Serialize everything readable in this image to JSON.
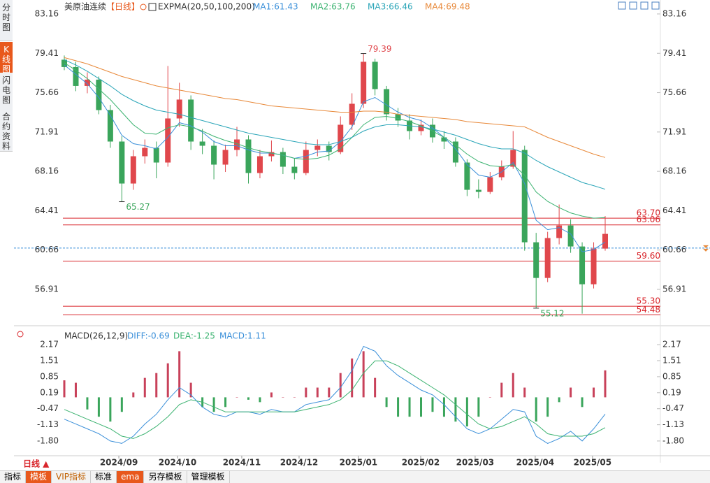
{
  "sidebar": [
    "分时图",
    "K线图",
    "闪电图",
    "合约资料"
  ],
  "header": {
    "symbol": "美原油连续",
    "period": "【日线】",
    "indicator": "EXPMA(20,50,100,200)"
  },
  "chart_data": {
    "type": "candlestick",
    "candles": [
      [
        78.8,
        79.2,
        77.8,
        78.1
      ],
      [
        78.1,
        78.6,
        75.8,
        76.3
      ],
      [
        76.3,
        77.6,
        75.6,
        76.9
      ],
      [
        76.9,
        77.2,
        73.6,
        74.0
      ],
      [
        74.0,
        74.5,
        70.4,
        71.0
      ],
      [
        71.0,
        71.5,
        65.27,
        67.0
      ],
      [
        67.0,
        70.2,
        66.4,
        69.6
      ],
      [
        69.6,
        71.2,
        68.9,
        70.4
      ],
      [
        70.4,
        71.0,
        67.5,
        69.0
      ],
      [
        69.0,
        78.2,
        68.6,
        73.2
      ],
      [
        73.2,
        76.6,
        72.4,
        75.0
      ],
      [
        75.0,
        75.4,
        70.2,
        71.0
      ],
      [
        71.0,
        72.2,
        69.8,
        70.6
      ],
      [
        70.6,
        71.1,
        67.4,
        68.8
      ],
      [
        68.8,
        70.7,
        68.1,
        70.2
      ],
      [
        70.2,
        72.4,
        69.6,
        71.2
      ],
      [
        71.2,
        71.6,
        67.0,
        68.0
      ],
      [
        68.0,
        70.2,
        67.5,
        69.6
      ],
      [
        69.6,
        71.1,
        69.1,
        70.0
      ],
      [
        70.0,
        70.4,
        67.9,
        68.6
      ],
      [
        68.6,
        69.4,
        67.4,
        68.0
      ],
      [
        68.0,
        71.0,
        67.8,
        70.2
      ],
      [
        70.2,
        71.2,
        69.6,
        70.6
      ],
      [
        70.6,
        71.0,
        69.2,
        70.0
      ],
      [
        70.0,
        73.4,
        69.8,
        72.6
      ],
      [
        72.6,
        75.6,
        72.1,
        74.6
      ],
      [
        74.6,
        79.39,
        74.2,
        78.6
      ],
      [
        78.6,
        78.9,
        75.4,
        76.0
      ],
      [
        76.0,
        76.3,
        73.0,
        73.6
      ],
      [
        73.6,
        74.2,
        72.4,
        73.0
      ],
      [
        73.0,
        73.6,
        71.2,
        72.0
      ],
      [
        72.0,
        73.1,
        71.6,
        72.6
      ],
      [
        72.6,
        73.2,
        70.9,
        71.4
      ],
      [
        71.4,
        72.0,
        70.3,
        71.0
      ],
      [
        71.0,
        71.4,
        68.6,
        69.0
      ],
      [
        69.0,
        69.3,
        65.8,
        66.4
      ],
      [
        66.4,
        67.4,
        65.6,
        66.2
      ],
      [
        66.2,
        68.1,
        66.0,
        67.6
      ],
      [
        67.6,
        69.2,
        67.3,
        68.6
      ],
      [
        68.6,
        72.0,
        68.4,
        70.2
      ],
      [
        70.2,
        70.6,
        60.6,
        61.4
      ],
      [
        61.4,
        62.3,
        55.12,
        58.0
      ],
      [
        58.0,
        62.4,
        57.6,
        61.8
      ],
      [
        61.8,
        65.0,
        61.2,
        63.0
      ],
      [
        63.0,
        63.6,
        60.4,
        61.0
      ],
      [
        61.0,
        61.4,
        54.6,
        57.4
      ],
      [
        57.4,
        61.4,
        57.0,
        60.8
      ],
      [
        60.8,
        63.9,
        60.6,
        62.2
      ]
    ],
    "up_color": "#e0474c",
    "down_color": "#3aa55b",
    "series": [
      {
        "name": "MA1:61.43",
        "color": "#3a8fd9",
        "values": [
          78.3,
          77.4,
          76.5,
          75.2,
          73.5,
          71.6,
          70.8,
          70.6,
          70.3,
          71.4,
          72.8,
          72.5,
          71.9,
          71.0,
          70.6,
          70.6,
          70.2,
          69.9,
          69.9,
          69.7,
          69.4,
          69.6,
          70.0,
          70.1,
          71.0,
          72.4,
          74.8,
          75.2,
          74.5,
          73.8,
          73.3,
          73.0,
          72.3,
          71.4,
          70.3,
          68.8,
          67.8,
          67.6,
          68.1,
          69.0,
          67.0,
          63.5,
          62.6,
          62.8,
          62.2,
          60.5,
          60.7,
          61.43
        ]
      },
      {
        "name": "MA2:63.76",
        "color": "#3cb371",
        "values": [
          78.5,
          77.8,
          77.0,
          76.0,
          75.0,
          73.8,
          72.6,
          71.8,
          71.7,
          72.3,
          72.6,
          72.4,
          72.0,
          71.5,
          71.1,
          70.8,
          70.4,
          70.1,
          69.9,
          69.7,
          69.4,
          69.3,
          69.4,
          69.7,
          70.3,
          71.4,
          72.6,
          73.3,
          73.4,
          73.2,
          72.9,
          72.5,
          72.0,
          71.4,
          70.7,
          69.8,
          69.1,
          68.7,
          68.6,
          68.8,
          67.8,
          66.2,
          65.3,
          64.7,
          64.2,
          63.9,
          63.7,
          63.76
        ]
      },
      {
        "name": "MA3:66.46",
        "color": "#2aa5b8",
        "values": [
          78.8,
          78.3,
          77.7,
          77.0,
          76.3,
          75.5,
          74.9,
          74.4,
          74.0,
          73.8,
          73.6,
          73.3,
          73.0,
          72.7,
          72.4,
          72.1,
          71.8,
          71.6,
          71.4,
          71.2,
          71.0,
          70.8,
          70.7,
          70.7,
          71.0,
          71.4,
          72.0,
          72.4,
          72.6,
          72.6,
          72.5,
          72.4,
          72.2,
          71.9,
          71.6,
          71.2,
          70.8,
          70.5,
          70.3,
          70.3,
          69.9,
          69.2,
          68.6,
          68.1,
          67.6,
          67.1,
          66.8,
          66.46
        ]
      },
      {
        "name": "MA4:69.48",
        "color": "#e8893a",
        "values": [
          79.0,
          78.7,
          78.4,
          78.0,
          77.6,
          77.2,
          76.9,
          76.6,
          76.3,
          76.1,
          75.9,
          75.7,
          75.5,
          75.3,
          75.1,
          75.0,
          74.8,
          74.6,
          74.4,
          74.3,
          74.2,
          74.1,
          74.0,
          73.9,
          73.8,
          73.8,
          73.9,
          73.9,
          73.8,
          73.6,
          73.5,
          73.4,
          73.3,
          73.2,
          73.1,
          72.9,
          72.8,
          72.7,
          72.6,
          72.5,
          72.4,
          71.9,
          71.4,
          71.0,
          70.6,
          70.2,
          69.8,
          69.48
        ]
      }
    ],
    "annotations": [
      26,
      5,
      41
    ],
    "levels": [
      {
        "value": 63.7,
        "label": "63.70"
      },
      63.06,
      {
        "value": 59.6,
        "label": "59.60"
      },
      {
        "value": 55.3,
        "label": "55.30"
      },
      54.48
    ],
    "level_color": "#d9262c",
    "last_price": 60.85,
    "ylim": [
      54.18,
      83.69
    ],
    "yticks": [
      83.16,
      79.41,
      75.66,
      71.91,
      68.16,
      64.41,
      60.66,
      56.91
    ],
    "xlim": [
      -0.5,
      47.5
    ],
    "xticks": [
      {
        "value": 4.74,
        "label": "2024/09"
      },
      {
        "value": 9.84,
        "label": "2024/10"
      },
      {
        "value": 15.42,
        "label": "2024/11"
      },
      {
        "value": 20.4,
        "label": "2024/12"
      },
      {
        "value": 25.56,
        "label": "2025/01"
      },
      {
        "value": 30.97,
        "label": "2025/02"
      },
      {
        "value": 35.7,
        "label": "2025/03"
      },
      {
        "value": 40.92,
        "label": "2025/04"
      },
      {
        "value": 45.9,
        "label": "2025/05"
      }
    ]
  },
  "macd": {
    "type": "macd",
    "title": "MACD(26,12,9)",
    "series": [
      {
        "name": "DIFF:-0.69",
        "color": "#3a8fd9",
        "values": [
          -0.9,
          -1.1,
          -1.3,
          -1.5,
          -1.8,
          -1.9,
          -1.6,
          -1.1,
          -0.7,
          -0.1,
          0.4,
          0.1,
          -0.4,
          -0.7,
          -0.8,
          -0.6,
          -0.6,
          -0.7,
          -0.5,
          -0.6,
          -0.6,
          -0.3,
          -0.2,
          -0.1,
          0.4,
          1.1,
          2.1,
          1.9,
          1.3,
          0.9,
          0.6,
          0.3,
          0.1,
          -0.3,
          -0.8,
          -1.3,
          -1.5,
          -1.3,
          -0.9,
          -0.5,
          -0.6,
          -1.6,
          -1.9,
          -1.7,
          -1.4,
          -1.8,
          -1.3,
          -0.69
        ]
      },
      {
        "name": "DEA:-1.25",
        "color": "#3cb371",
        "values": [
          -0.5,
          -0.7,
          -0.9,
          -1.1,
          -1.3,
          -1.6,
          -1.7,
          -1.5,
          -1.2,
          -0.8,
          -0.3,
          -0.1,
          -0.2,
          -0.4,
          -0.6,
          -0.6,
          -0.6,
          -0.6,
          -0.6,
          -0.6,
          -0.6,
          -0.5,
          -0.4,
          -0.3,
          -0.1,
          0.3,
          1.0,
          1.5,
          1.5,
          1.3,
          1.0,
          0.7,
          0.4,
          0.1,
          -0.3,
          -0.7,
          -1.1,
          -1.3,
          -1.2,
          -1.0,
          -0.8,
          -1.1,
          -1.5,
          -1.6,
          -1.6,
          -1.6,
          -1.5,
          -1.25
        ]
      }
    ],
    "histogram": {
      "name": "MACD:1.11",
      "color": "#3a8fd9",
      "up_color": "#c8415a",
      "down_color": "#3aa55b",
      "values": [
        0.7,
        0.6,
        -0.5,
        -0.8,
        -1.0,
        -0.6,
        0.2,
        0.8,
        1.0,
        1.4,
        1.9,
        0.6,
        -0.4,
        -0.6,
        -0.4,
        0.0,
        -0.1,
        -0.2,
        0.2,
        0.0,
        0.0,
        0.4,
        0.4,
        0.4,
        1.0,
        1.6,
        1.9,
        0.8,
        -0.4,
        -0.8,
        -0.8,
        -0.8,
        -0.6,
        -0.8,
        -1.0,
        -1.2,
        -0.8,
        0.0,
        0.6,
        1.0,
        0.4,
        -1.0,
        -0.8,
        -0.2,
        0.4,
        -0.4,
        0.4,
        1.11
      ]
    },
    "ylim": [
      -2.35,
      2.69
    ],
    "yticks": [
      2.17,
      1.51,
      0.85,
      0.19,
      -0.47,
      -1.13,
      {
        "value": -1.8,
        "label": "-1.80"
      }
    ]
  },
  "footer": {
    "period_button": "日线 ▲",
    "tabs": [
      "指标",
      "模板",
      "VIP指标",
      "标准",
      "ema",
      "另存模板",
      "管理模板"
    ]
  }
}
